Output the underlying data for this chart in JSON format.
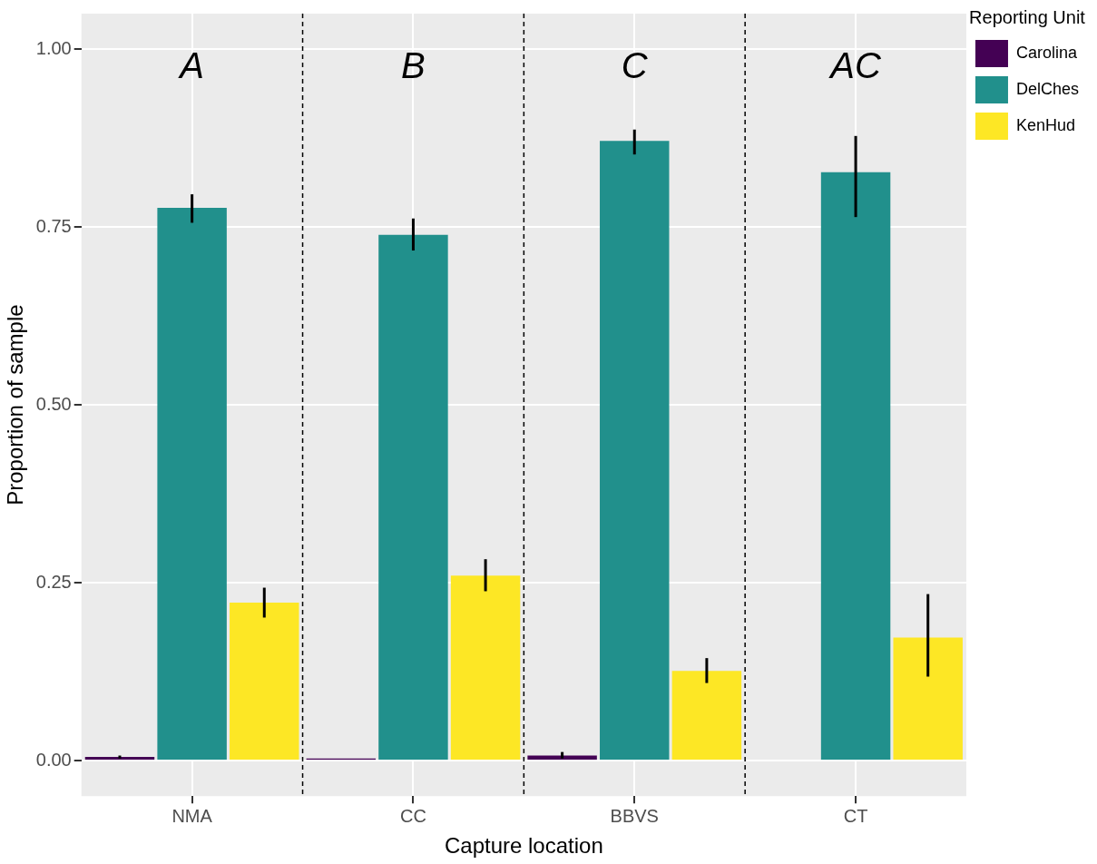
{
  "chart_data": {
    "type": "bar",
    "xlabel": "Capture location",
    "ylabel": "Proportion of sample",
    "legend_title": "Reporting Unit",
    "categories": [
      "NMA",
      "CC",
      "BBVS",
      "CT"
    ],
    "series": [
      {
        "name": "Carolina",
        "color": "#440154",
        "values": [
          0.005,
          0.003,
          0.007,
          null
        ],
        "errors": [
          [
            0.003,
            0.007
          ],
          null,
          [
            0.003,
            0.012
          ],
          null
        ]
      },
      {
        "name": "DelChes",
        "color": "#21908c",
        "values": [
          0.777,
          0.739,
          0.871,
          0.827
        ],
        "errors": [
          [
            0.756,
            0.796
          ],
          [
            0.717,
            0.762
          ],
          [
            0.852,
            0.887
          ],
          [
            0.764,
            0.878
          ]
        ]
      },
      {
        "name": "KenHud",
        "color": "#fde725",
        "values": [
          0.222,
          0.26,
          0.126,
          0.173
        ],
        "errors": [
          [
            0.201,
            0.243
          ],
          [
            0.238,
            0.283
          ],
          [
            0.109,
            0.144
          ],
          [
            0.118,
            0.234
          ]
        ]
      }
    ],
    "ylim": [
      -0.05,
      1.05
    ],
    "yticks": [
      {
        "value": 0,
        "label": "0.00"
      },
      {
        "value": 0.25,
        "label": "0.25"
      },
      {
        "value": 0.5,
        "label": "0.50"
      },
      {
        "value": 0.75,
        "label": "0.75"
      },
      {
        "value": 1,
        "label": "1.00"
      }
    ],
    "annotations": [
      "A",
      "B",
      "C",
      "AC"
    ],
    "grid": true,
    "legend": "top right"
  }
}
